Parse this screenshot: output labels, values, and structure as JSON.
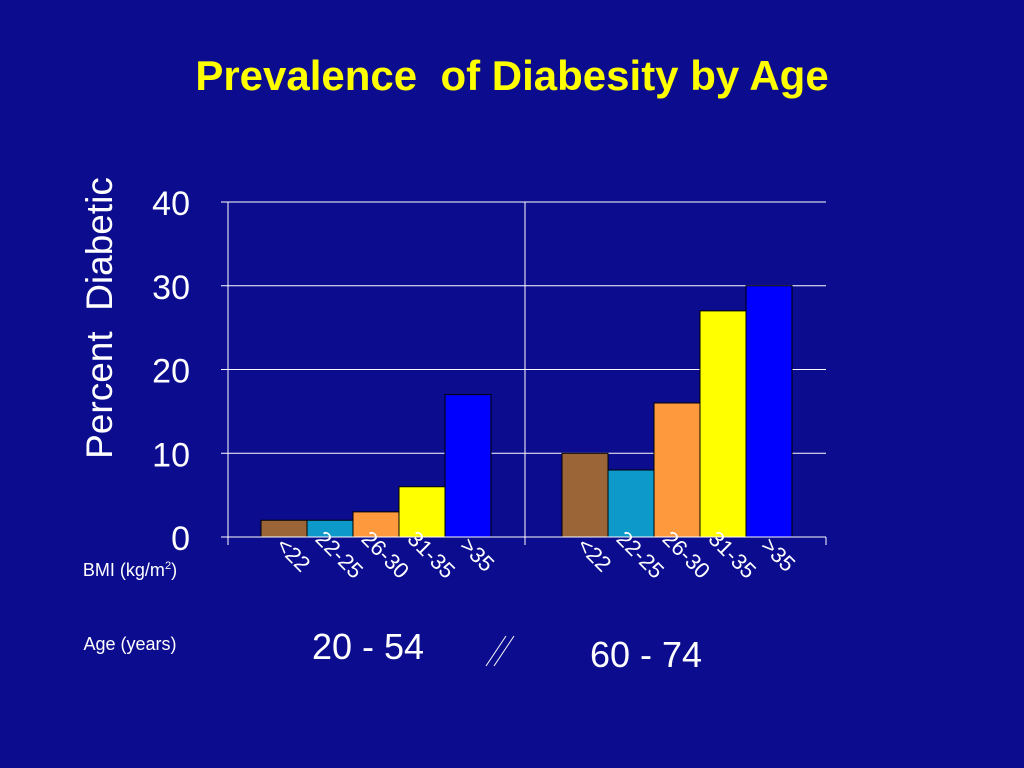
{
  "title": "Prevalence  of Diabesity by Age",
  "y_axis_label": "Percent  Diabetic",
  "row_labels": {
    "bmi": {
      "text": "BMI (kg/m",
      "superscript": "2",
      "suffix": ")"
    },
    "age": "Age (years)"
  },
  "age_groups": [
    "20 - 54",
    "60 - 74"
  ],
  "colors": {
    "background": "#0c0c8e",
    "title": "#ffff00",
    "text": "#ffffff",
    "bars": [
      "#9b6538",
      "#0d99c9",
      "#fe9a3d",
      "#ffff00",
      "#0000ff"
    ]
  },
  "chart_data": {
    "type": "bar",
    "title": "Prevalence  of Diabesity by Age",
    "ylabel": "Percent  Diabetic",
    "ylim": [
      0,
      40
    ],
    "yticks": [
      0,
      10,
      20,
      30,
      40
    ],
    "grid": true,
    "categories": [
      "<22",
      "22-25",
      "26-30",
      "31-35",
      ">35"
    ],
    "groups": [
      {
        "name": "20 - 54",
        "values": [
          2,
          2,
          3,
          6,
          17
        ]
      },
      {
        "name": "60 - 74",
        "values": [
          10,
          8,
          16,
          27,
          30
        ]
      }
    ]
  }
}
